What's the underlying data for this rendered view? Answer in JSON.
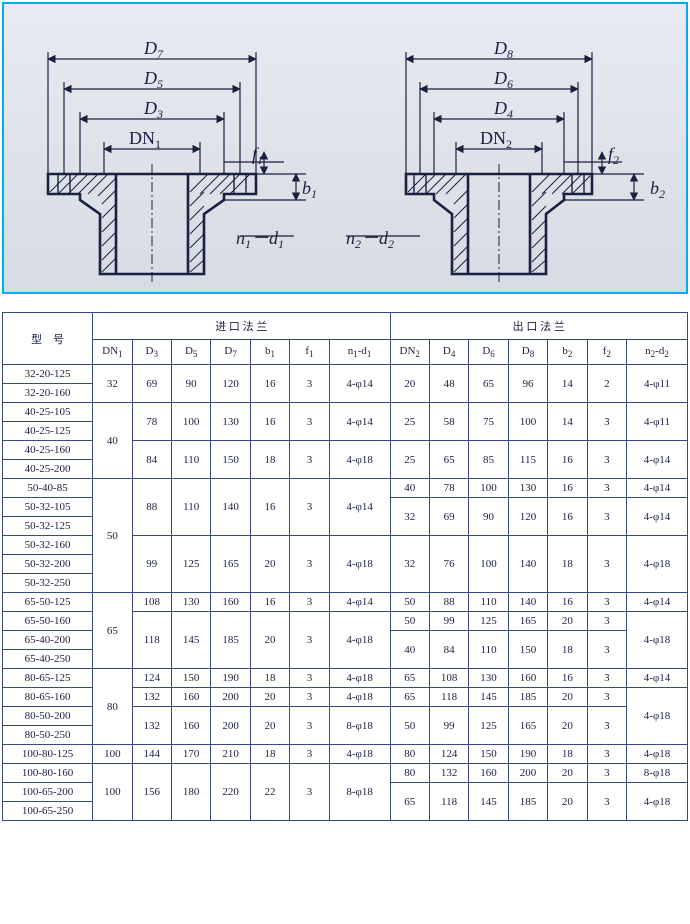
{
  "diagram": {
    "stroke": "#1a2040",
    "sw_thick": 2.6,
    "sw_thin": 1.2,
    "left": {
      "labels": {
        "D7": "D",
        "D5": "D",
        "D3": "D",
        "DN1": "DN",
        "f1": "f",
        "b1": "b",
        "nd": "n",
        "d1": "d"
      }
    },
    "right": {
      "labels": {
        "D8": "D",
        "D6": "D",
        "D4": "D",
        "DN2": "DN",
        "f2": "f",
        "b2": "b",
        "nd": "n",
        "d2": "d"
      }
    }
  },
  "table": {
    "headers": {
      "model": "型　号",
      "inlet": "进 口 法 兰",
      "outlet": "出 口 法 兰",
      "DN1": "DN",
      "D3": "D",
      "D5": "D",
      "D7": "D",
      "b1": "b",
      "f1": "f",
      "n1d1": "n",
      "sep": "-d",
      "DN2": "DN",
      "D4": "D",
      "D6": "D",
      "D8": "D",
      "b2": "b",
      "f2": "f",
      "n2d2": "n",
      "sep2": "-d"
    },
    "rows": [
      {
        "m": "32-20-125",
        "DN1": "32",
        "D3": "69",
        "D5": "90",
        "D7": "120",
        "b1": "16",
        "f1": "3",
        "n1": "4-φ14",
        "DN2": "20",
        "D4": "48",
        "D6": "65",
        "D8": "96",
        "b2": "14",
        "f2": "2",
        "n2": "4-φ11",
        "sp": {
          "DN1": 2,
          "inlet": 2,
          "outlet": 2
        }
      },
      {
        "m": "32-20-160"
      },
      {
        "m": "40-25-105",
        "DN1": "40",
        "D3": "78",
        "D5": "100",
        "D7": "130",
        "b1": "16",
        "f1": "3",
        "n1": "4-φ14",
        "DN2": "25",
        "D4": "58",
        "D6": "75",
        "D8": "100",
        "b2": "14",
        "f2": "3",
        "n2": "4-φ11",
        "sp": {
          "DN1": 4,
          "inlet": 2,
          "outlet": 2
        }
      },
      {
        "m": "40-25-125"
      },
      {
        "m": "40-25-160",
        "D3": "84",
        "D5": "110",
        "D7": "150",
        "b1": "18",
        "f1": "3",
        "n1": "4-φ18",
        "DN2": "25",
        "D4": "65",
        "D6": "85",
        "D8": "115",
        "b2": "16",
        "f2": "3",
        "n2": "4-φ14",
        "sp": {
          "inlet": 2,
          "outlet": 2
        }
      },
      {
        "m": "40-25-200"
      },
      {
        "m": "50-40-85",
        "DN1": "50",
        "D3": "88",
        "D5": "110",
        "D7": "140",
        "b1": "16",
        "f1": "3",
        "n1": "4-φ14",
        "DN2": "40",
        "D4": "78",
        "D6": "100",
        "D8": "130",
        "b2": "16",
        "f2": "3",
        "n2": "4-φ14",
        "sp": {
          "DN1": 6,
          "inleta": 3,
          "outletb": 1
        }
      },
      {
        "m": "50-32-105",
        "sp": {
          "inleta": 0
        },
        "DN2": "32",
        "D4": "69",
        "D6": "90",
        "D8": "120",
        "b2": "16",
        "f2": "3",
        "n2": "4-φ14",
        "spo": {
          "outlet": 2
        }
      },
      {
        "m": "50-32-125"
      },
      {
        "m": "50-32-160",
        "D3": "99",
        "D5": "125",
        "D7": "165",
        "b1": "20",
        "f1": "3",
        "n1": "4-φ18",
        "DN2": "32",
        "D4": "76",
        "D6": "100",
        "D8": "140",
        "b2": "18",
        "f2": "3",
        "n2": "4-φ18",
        "sp": {
          "inlet": 3,
          "outlet": 3
        }
      },
      {
        "m": "50-32-200"
      },
      {
        "m": "50-32-250"
      },
      {
        "m": "65-50-125",
        "DN1": "65",
        "D3": "108",
        "D5": "130",
        "D7": "160",
        "b1": "16",
        "f1": "3",
        "n1": "4-φ14",
        "DN2": "50",
        "D4": "88",
        "D6": "110",
        "D8": "140",
        "b2": "16",
        "f2": "3",
        "n2": "4-φ14",
        "sp": {
          "DN1": 4
        }
      },
      {
        "m": "65-50-160",
        "D3": "118",
        "D5": "145",
        "D7": "185",
        "b1": "20",
        "f1": "3",
        "n1": "4-φ18",
        "DN2": "50",
        "D4": "99",
        "D6": "125",
        "D8": "165",
        "b2": "20",
        "f2": "3",
        "n2": "4-φ18",
        "sp": {
          "inlet": 3,
          "n2span": 3
        }
      },
      {
        "m": "65-40-200",
        "DN2": "40",
        "D4": "84",
        "D6": "110",
        "D8": "150",
        "b2": "18",
        "f2": "3",
        "sp": {
          "outlet6": 2
        }
      },
      {
        "m": "65-40-250"
      },
      {
        "m": "80-65-125",
        "DN1": "80",
        "D3": "124",
        "D5": "150",
        "D7": "190",
        "b1": "18",
        "f1": "3",
        "n1": "4-φ18",
        "DN2": "65",
        "D4": "108",
        "D6": "130",
        "D8": "160",
        "b2": "16",
        "f2": "3",
        "n2": "4-φ14",
        "sp": {
          "DN1": 4
        }
      },
      {
        "m": "80-65-160",
        "D3": "132",
        "D5": "160",
        "D7": "200",
        "b1": "20",
        "f1": "3",
        "n1": "4-φ18",
        "DN2": "65",
        "D4": "118",
        "D6": "145",
        "D8": "185",
        "b2": "20",
        "f2": "3",
        "n2": "4-φ18",
        "sp": {
          "n2span": 2
        }
      },
      {
        "m": "80-50-200",
        "D3": "132",
        "D5": "160",
        "D7": "200",
        "b1": "20",
        "f1": "3",
        "n1": "8-φ18",
        "DN2": "50",
        "D4": "99",
        "D6": "125",
        "D8": "165",
        "b2": "20",
        "f2": "3",
        "sp": {
          "inlet": 2,
          "outlet6": 2
        }
      },
      {
        "m": "80-50-250"
      },
      {
        "m": "100-80-125",
        "DN1": "100",
        "D3": "144",
        "D5": "170",
        "D7": "210",
        "b1": "18",
        "f1": "3",
        "n1": "4-φ18",
        "DN2": "80",
        "D4": "124",
        "D6": "150",
        "D8": "190",
        "b2": "18",
        "f2": "3",
        "n2": "4-φ18"
      },
      {
        "m": "100-80-160",
        "DN1": "100",
        "D3": "156",
        "D5": "180",
        "D7": "220",
        "b1": "22",
        "f1": "3",
        "n1": "8-φ18",
        "DN2": "80",
        "D4": "132",
        "D6": "160",
        "D8": "200",
        "b2": "20",
        "f2": "3",
        "n2": "8-φ18",
        "sp": {
          "DN1": 3,
          "inlet": 3
        }
      },
      {
        "m": "100-65-200",
        "DN2": "65",
        "D4": "118",
        "D6": "145",
        "D8": "185",
        "b2": "20",
        "f2": "3",
        "n2": "4-φ18",
        "sp": {
          "outlet": 2
        }
      },
      {
        "m": "100-65-250"
      }
    ]
  }
}
